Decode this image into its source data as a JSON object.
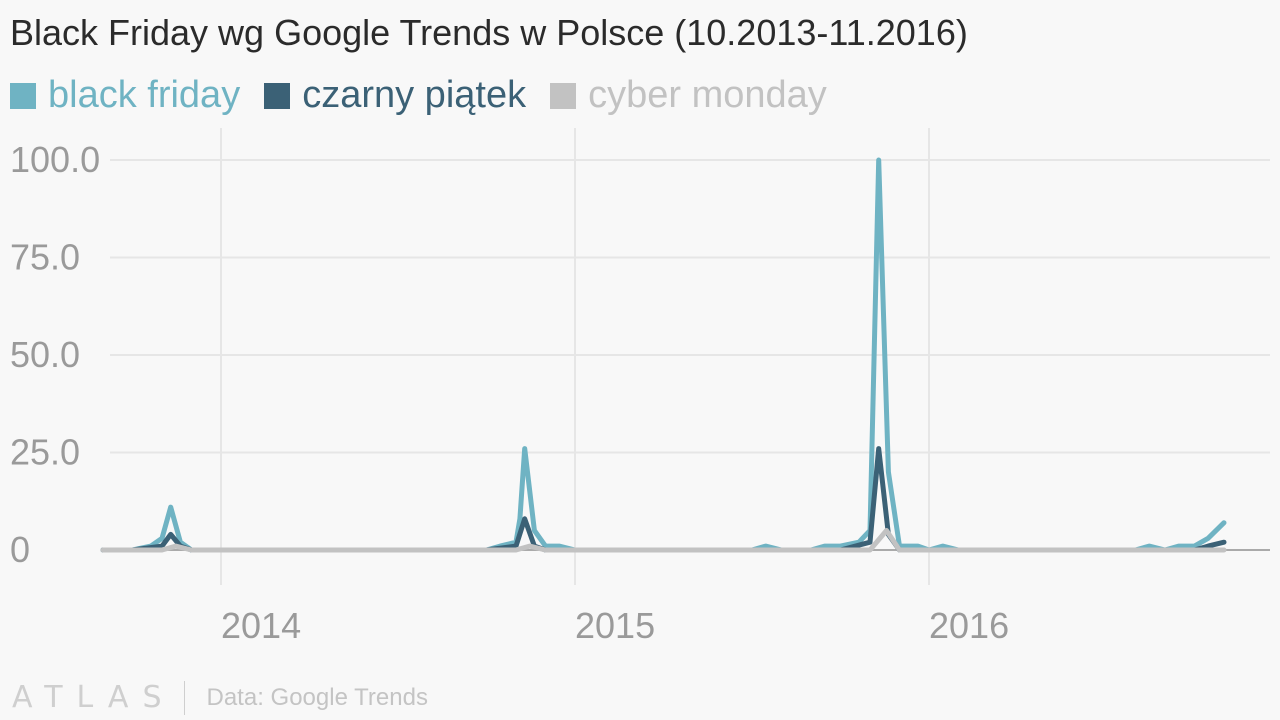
{
  "title": "Black Friday wg Google Trends w Polsce (10.2013-11.2016)",
  "footer": {
    "logo": "ATLAS",
    "source": "Data: Google Trends"
  },
  "colors": {
    "black_friday": "#6fb3c3",
    "czarny_piatek": "#3b6176",
    "cyber_monday": "#c2c2c2",
    "grid": "#e6e6e6",
    "axis": "#aaaaaa",
    "tick_text": "#9a9a9a"
  },
  "chart_data": {
    "type": "line",
    "title": "Black Friday wg Google Trends w Polsce (10.2013-11.2016)",
    "xlabel": "",
    "ylabel": "",
    "ylim": [
      0,
      100
    ],
    "yticks": [
      0,
      25,
      50,
      75,
      100
    ],
    "ytick_labels": [
      "0",
      "25.0",
      "50.0",
      "75.0",
      "100.0"
    ],
    "xlim": [
      "2013-09",
      "2016-11"
    ],
    "xticks": [
      {
        "label": "2014",
        "date": "2014-01"
      },
      {
        "label": "2015",
        "date": "2015-01"
      },
      {
        "label": "2016",
        "date": "2016-01"
      }
    ],
    "grid": true,
    "legend_position": "top-left",
    "series": [
      {
        "name": "black friday",
        "color": "#6fb3c3",
        "points": [
          [
            "2013-09",
            0
          ],
          [
            "2013-10",
            0
          ],
          [
            "2013-10-20",
            1
          ],
          [
            "2013-11",
            3
          ],
          [
            "2013-11-10",
            11
          ],
          [
            "2013-11-20",
            2
          ],
          [
            "2013-12",
            0
          ],
          [
            "2014-01",
            0
          ],
          [
            "2014-10",
            0
          ],
          [
            "2014-10-15",
            1
          ],
          [
            "2014-11",
            2
          ],
          [
            "2014-11-05",
            8
          ],
          [
            "2014-11-10",
            26
          ],
          [
            "2014-11-20",
            5
          ],
          [
            "2014-12",
            1
          ],
          [
            "2014-12-15",
            1
          ],
          [
            "2015-01",
            0
          ],
          [
            "2015-07",
            0
          ],
          [
            "2015-07-15",
            1
          ],
          [
            "2015-08",
            0
          ],
          [
            "2015-09",
            0
          ],
          [
            "2015-09-15",
            1
          ],
          [
            "2015-10",
            1
          ],
          [
            "2015-10-20",
            2
          ],
          [
            "2015-11",
            5
          ],
          [
            "2015-11-10",
            100
          ],
          [
            "2015-11-20",
            20
          ],
          [
            "2015-12",
            1
          ],
          [
            "2015-12-20",
            1
          ],
          [
            "2016-01",
            0
          ],
          [
            "2016-01-15",
            1
          ],
          [
            "2016-02",
            0
          ],
          [
            "2016-08",
            0
          ],
          [
            "2016-08-15",
            1
          ],
          [
            "2016-09",
            0
          ],
          [
            "2016-09-15",
            1
          ],
          [
            "2016-10",
            1
          ],
          [
            "2016-10-15",
            3
          ],
          [
            "2016-11",
            7
          ]
        ]
      },
      {
        "name": "czarny piątek",
        "color": "#3b6176",
        "points": [
          [
            "2013-09",
            0
          ],
          [
            "2013-10",
            0
          ],
          [
            "2013-11",
            1
          ],
          [
            "2013-11-10",
            4
          ],
          [
            "2013-11-20",
            1
          ],
          [
            "2013-12",
            0
          ],
          [
            "2014-10",
            0
          ],
          [
            "2014-11",
            1
          ],
          [
            "2014-11-10",
            8
          ],
          [
            "2014-11-20",
            1
          ],
          [
            "2014-12",
            0
          ],
          [
            "2015-10",
            0
          ],
          [
            "2015-11",
            2
          ],
          [
            "2015-11-10",
            26
          ],
          [
            "2015-11-20",
            4
          ],
          [
            "2015-12",
            0
          ],
          [
            "2016-10",
            0
          ],
          [
            "2016-10-15",
            1
          ],
          [
            "2016-11",
            2
          ]
        ]
      },
      {
        "name": "cyber monday",
        "color": "#c2c2c2",
        "points": [
          [
            "2013-09",
            0
          ],
          [
            "2013-11",
            0
          ],
          [
            "2013-11-15",
            1
          ],
          [
            "2013-12",
            0
          ],
          [
            "2014-11",
            0
          ],
          [
            "2014-11-15",
            1
          ],
          [
            "2014-12",
            0
          ],
          [
            "2015-11",
            0
          ],
          [
            "2015-11-18",
            5
          ],
          [
            "2015-12",
            0
          ],
          [
            "2016-11",
            0
          ]
        ]
      }
    ]
  }
}
